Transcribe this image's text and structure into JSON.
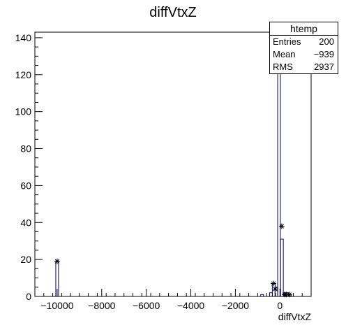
{
  "chart_data": {
    "type": "histogram",
    "title": "diffVtxZ",
    "xlabel": "diffVtxZ",
    "ylabel": "",
    "xlim": [
      -11000,
      1400
    ],
    "ylim": [
      0,
      143
    ],
    "x_ticks": [
      -10000,
      -8000,
      -6000,
      -4000,
      -2000,
      0
    ],
    "x_tick_labels": [
      "−10000",
      "−8000",
      "−6000",
      "−4000",
      "−2000",
      "0"
    ],
    "y_ticks": [
      0,
      20,
      40,
      60,
      80,
      100,
      120,
      140
    ],
    "y_tick_labels": [
      "0",
      "20",
      "40",
      "60",
      "80",
      "100",
      "120",
      "140"
    ],
    "bin_width": 124,
    "bins": [
      {
        "x": -10000,
        "value": 19
      },
      {
        "x": -800,
        "value": 1
      },
      {
        "x": -400,
        "value": 2
      },
      {
        "x": -280,
        "value": 7
      },
      {
        "x": -160,
        "value": 5
      },
      {
        "x": -40,
        "value": 127
      },
      {
        "x": 90,
        "value": 31
      },
      {
        "x": 210,
        "value": 2
      },
      {
        "x": 330,
        "value": 2
      },
      {
        "x": 450,
        "value": 1
      }
    ],
    "markers": [
      {
        "x": -10000,
        "y": 19
      },
      {
        "x": -290,
        "y": 7
      },
      {
        "x": -210,
        "y": 4
      },
      {
        "x": -40,
        "y": 127
      },
      {
        "x": 80,
        "y": 38
      },
      {
        "x": 210,
        "y": 1
      },
      {
        "x": 290,
        "y": 1
      },
      {
        "x": 420,
        "y": 1
      }
    ],
    "line_color": "#000080",
    "marker_color": "#000000",
    "grid": false,
    "legend": "none"
  },
  "stats": {
    "title": "htemp",
    "rows": [
      {
        "label": "Entries",
        "value": "200"
      },
      {
        "label": "Mean",
        "value": "−939"
      },
      {
        "label": "RMS",
        "value": "2937"
      }
    ]
  }
}
